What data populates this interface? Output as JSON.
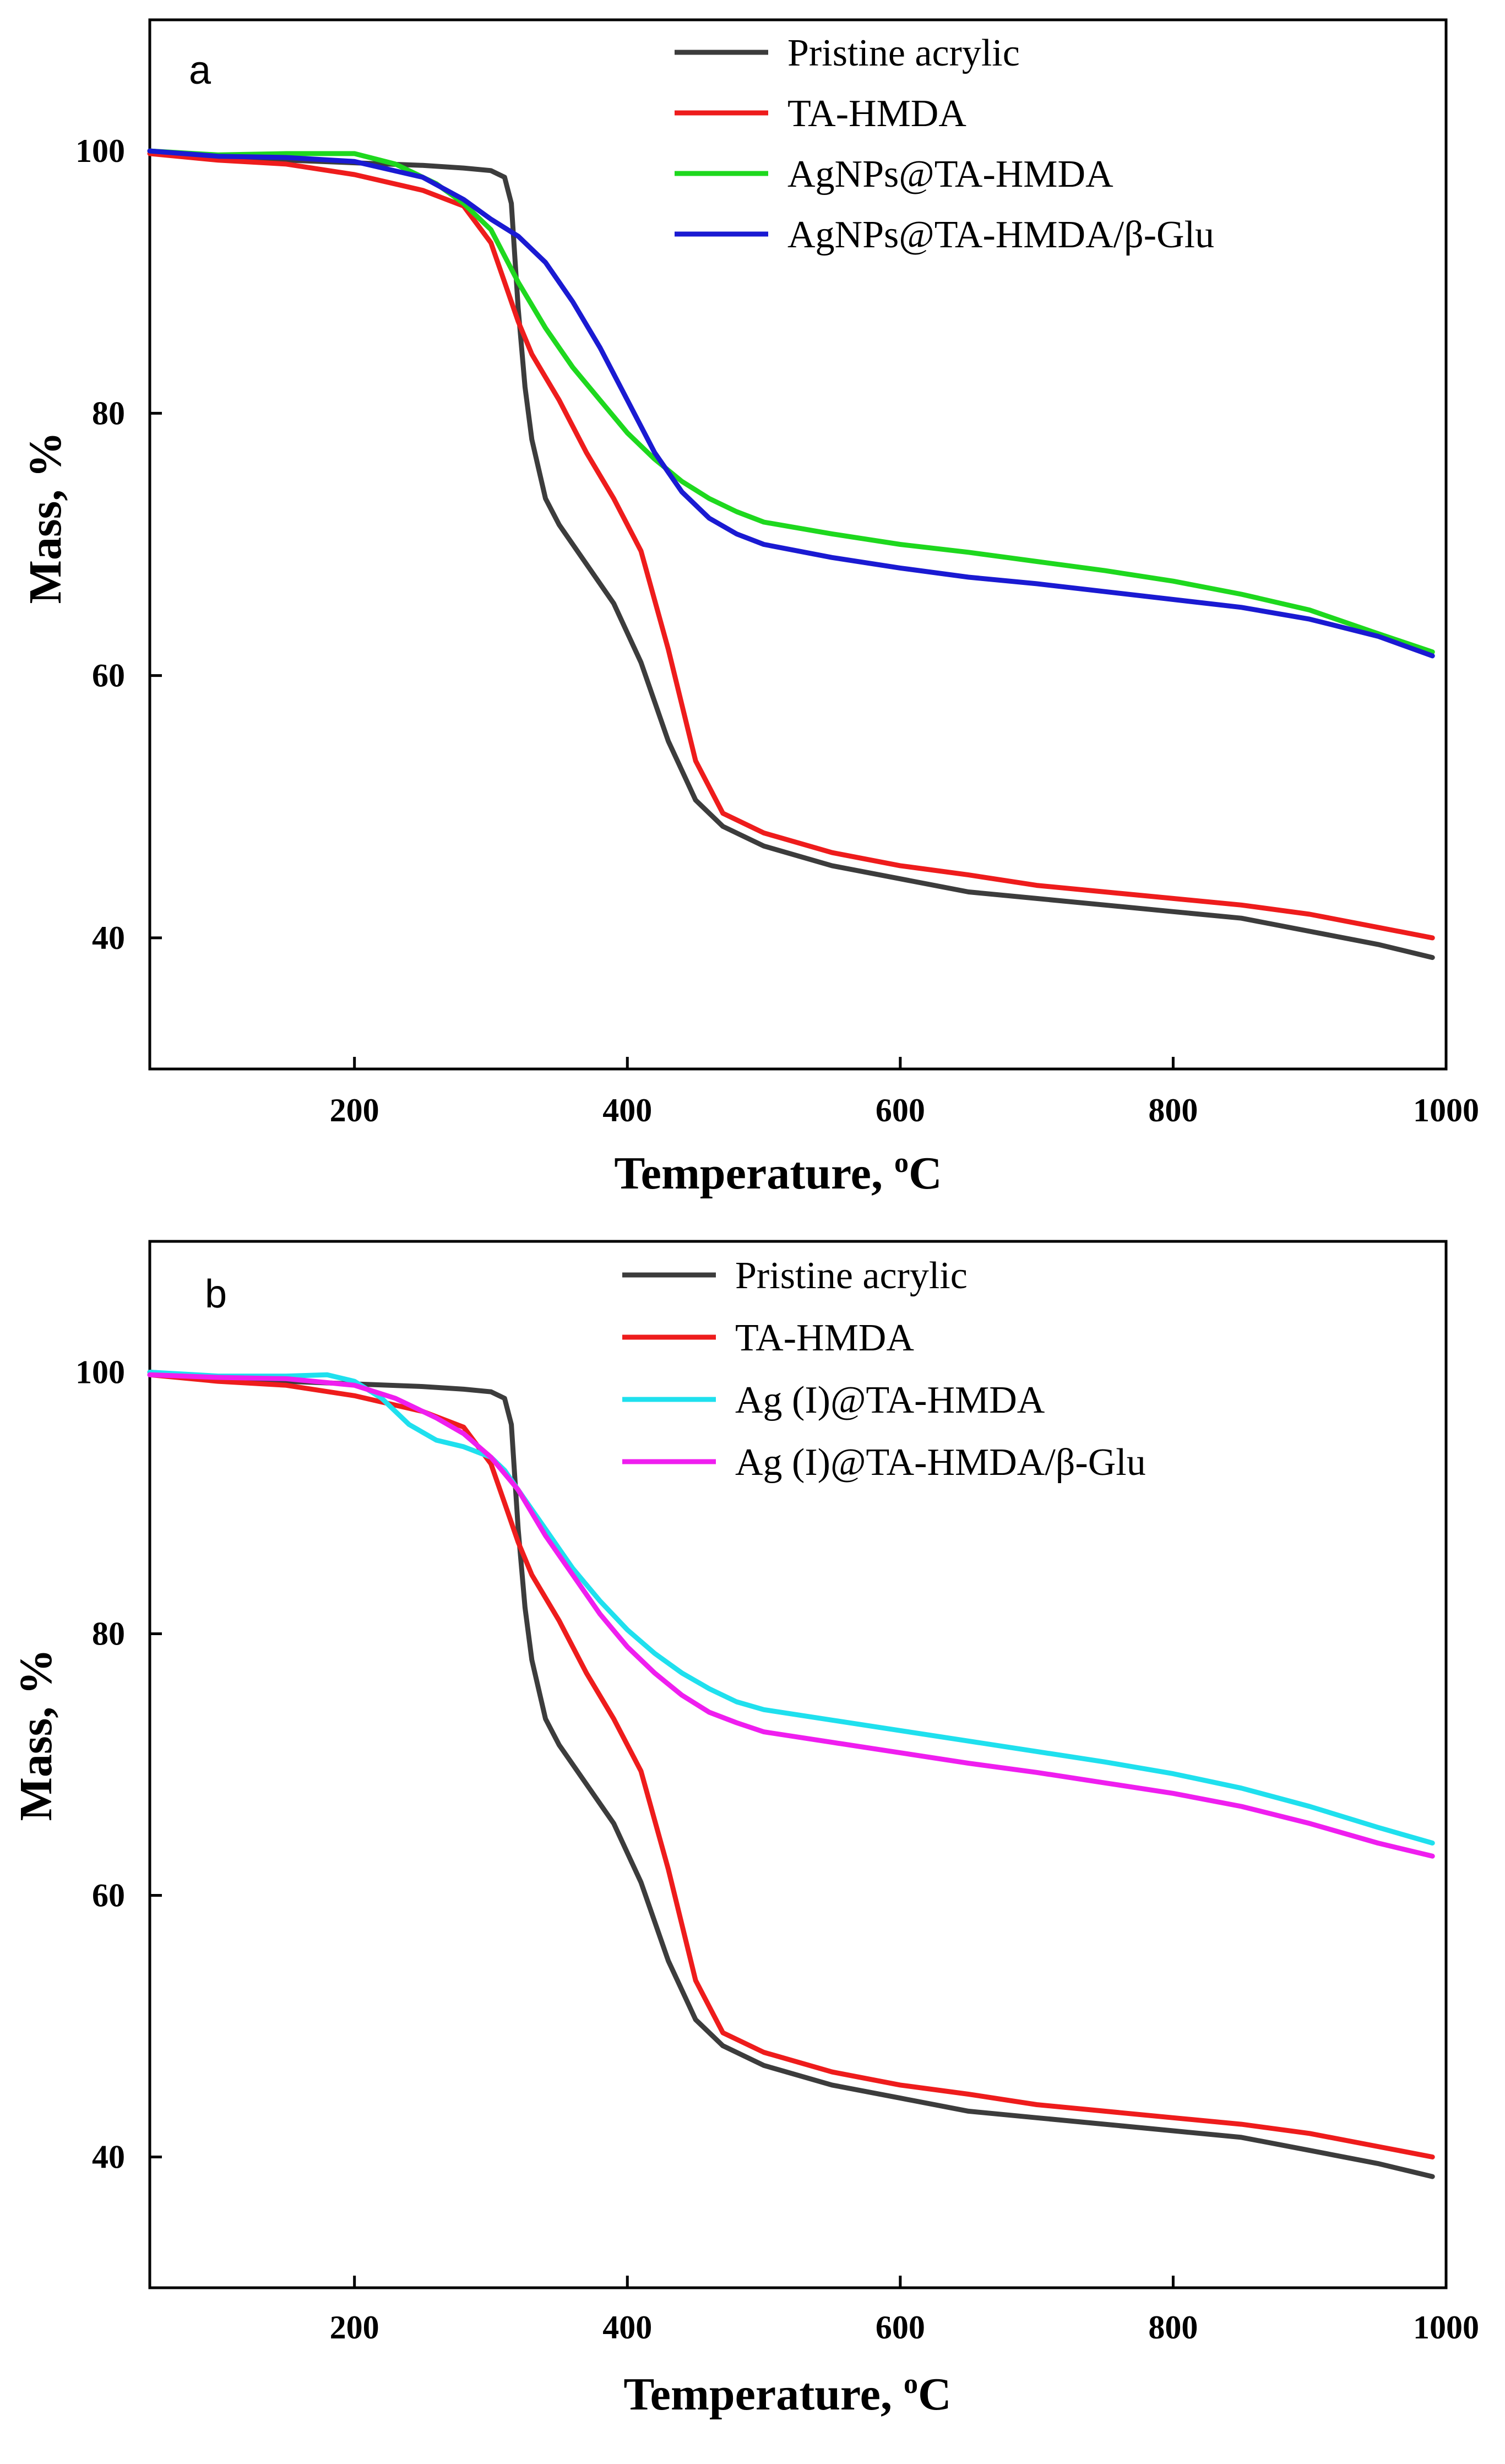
{
  "chart_data": [
    {
      "type": "line",
      "panel_label": "a",
      "xlabel": "Temperature, ",
      "xlabel_sup": "o",
      "xlabel_unit": "C",
      "ylabel": "Mass, %",
      "xlim": [
        50,
        1000
      ],
      "ylim": [
        30,
        110
      ],
      "xticks": [
        200,
        400,
        600,
        800,
        1000
      ],
      "yticks": [
        40,
        60,
        80,
        100
      ],
      "legend_position": "top-right",
      "series": [
        {
          "name": "Pristine acrylic",
          "color": "#3c3c3c",
          "x": [
            50,
            100,
            150,
            200,
            250,
            280,
            300,
            310,
            315,
            320,
            325,
            330,
            340,
            350,
            370,
            390,
            410,
            430,
            450,
            470,
            500,
            550,
            600,
            650,
            700,
            750,
            800,
            850,
            900,
            950,
            990
          ],
          "y": [
            100,
            99.6,
            99.3,
            99.1,
            98.9,
            98.7,
            98.5,
            98.0,
            96.0,
            88.0,
            82.0,
            78.0,
            73.5,
            71.5,
            68.5,
            65.5,
            61.0,
            55.0,
            50.5,
            48.5,
            47.0,
            45.5,
            44.5,
            43.5,
            43.0,
            42.5,
            42.0,
            41.5,
            40.5,
            39.5,
            38.5
          ]
        },
        {
          "name": "TA-HMDA",
          "color": "#ee1c1c",
          "x": [
            50,
            100,
            150,
            200,
            250,
            280,
            300,
            310,
            320,
            330,
            350,
            370,
            390,
            410,
            430,
            450,
            470,
            500,
            550,
            600,
            650,
            700,
            750,
            800,
            850,
            900,
            950,
            990
          ],
          "y": [
            99.8,
            99.3,
            99.0,
            98.2,
            97.0,
            95.8,
            93.0,
            90.0,
            87.0,
            84.5,
            81.0,
            77.0,
            73.5,
            69.5,
            62.0,
            53.5,
            49.5,
            48.0,
            46.5,
            45.5,
            44.8,
            44.0,
            43.5,
            43.0,
            42.5,
            41.8,
            40.8,
            40.0
          ]
        },
        {
          "name": "AgNPs@TA-HMDA",
          "color": "#1ed81e",
          "x": [
            50,
            100,
            150,
            200,
            230,
            260,
            280,
            300,
            320,
            340,
            360,
            380,
            400,
            420,
            440,
            460,
            480,
            500,
            550,
            600,
            650,
            700,
            750,
            800,
            850,
            900,
            950,
            990
          ],
          "y": [
            100,
            99.7,
            99.8,
            99.8,
            99.0,
            97.5,
            96.0,
            94.0,
            90.0,
            86.5,
            83.5,
            81.0,
            78.5,
            76.5,
            74.8,
            73.5,
            72.5,
            71.7,
            70.8,
            70.0,
            69.4,
            68.7,
            68.0,
            67.2,
            66.2,
            65.0,
            63.2,
            61.8
          ]
        },
        {
          "name": "AgNPs@TA-HMDA/β-Glu",
          "color": "#1a1ad2",
          "x": [
            50,
            100,
            150,
            200,
            250,
            280,
            300,
            320,
            340,
            360,
            380,
            400,
            420,
            440,
            460,
            480,
            500,
            550,
            600,
            650,
            700,
            750,
            800,
            850,
            900,
            950,
            990
          ],
          "y": [
            100,
            99.6,
            99.5,
            99.2,
            98.0,
            96.3,
            94.8,
            93.5,
            91.5,
            88.5,
            85.0,
            81.0,
            77.0,
            74.0,
            72.0,
            70.8,
            70.0,
            69.0,
            68.2,
            67.5,
            67.0,
            66.4,
            65.8,
            65.2,
            64.3,
            63.0,
            61.5
          ]
        }
      ]
    },
    {
      "type": "line",
      "panel_label": "b",
      "xlabel": "Temperature, ",
      "xlabel_sup": "o",
      "xlabel_unit": "C",
      "ylabel": "Mass, %",
      "xlim": [
        50,
        1000
      ],
      "ylim": [
        30,
        110
      ],
      "xticks": [
        200,
        400,
        600,
        800,
        1000
      ],
      "yticks": [
        40,
        60,
        80,
        100
      ],
      "legend_position": "top-right",
      "series": [
        {
          "name": "Pristine acrylic",
          "color": "#3c3c3c",
          "x": [
            50,
            100,
            150,
            200,
            250,
            280,
            300,
            310,
            315,
            320,
            325,
            330,
            340,
            350,
            370,
            390,
            410,
            430,
            450,
            470,
            500,
            550,
            600,
            650,
            700,
            750,
            800,
            850,
            900,
            950,
            990
          ],
          "y": [
            100,
            99.6,
            99.3,
            99.1,
            98.9,
            98.7,
            98.5,
            98.0,
            96.0,
            88.0,
            82.0,
            78.0,
            73.5,
            71.5,
            68.5,
            65.5,
            61.0,
            55.0,
            50.5,
            48.5,
            47.0,
            45.5,
            44.5,
            43.5,
            43.0,
            42.5,
            42.0,
            41.5,
            40.5,
            39.5,
            38.5
          ]
        },
        {
          "name": "TA-HMDA",
          "color": "#ee1c1c",
          "x": [
            50,
            100,
            150,
            200,
            250,
            280,
            300,
            310,
            320,
            330,
            350,
            370,
            390,
            410,
            430,
            450,
            470,
            500,
            550,
            600,
            650,
            700,
            750,
            800,
            850,
            900,
            950,
            990
          ],
          "y": [
            99.8,
            99.3,
            99.0,
            98.2,
            97.0,
            95.8,
            93.0,
            90.0,
            87.0,
            84.5,
            81.0,
            77.0,
            73.5,
            69.5,
            62.0,
            53.5,
            49.5,
            48.0,
            46.5,
            45.5,
            44.8,
            44.0,
            43.5,
            43.0,
            42.5,
            41.8,
            40.8,
            40.0
          ]
        },
        {
          "name": "Ag (I)@TA-HMDA",
          "color": "#1fe0ee",
          "x": [
            50,
            100,
            150,
            180,
            200,
            220,
            240,
            260,
            280,
            300,
            310,
            320,
            340,
            360,
            380,
            400,
            420,
            440,
            460,
            480,
            500,
            550,
            600,
            650,
            700,
            750,
            800,
            850,
            900,
            950,
            990
          ],
          "y": [
            100,
            99.7,
            99.7,
            99.8,
            99.3,
            98.0,
            96.0,
            94.8,
            94.3,
            93.5,
            92.5,
            91.0,
            88.0,
            85.0,
            82.5,
            80.3,
            78.5,
            77.0,
            75.8,
            74.8,
            74.2,
            73.4,
            72.6,
            71.8,
            71.0,
            70.2,
            69.3,
            68.2,
            66.8,
            65.2,
            64.0
          ]
        },
        {
          "name": "Ag (I)@TA-HMDA/β-Glu",
          "color": "#ef1eef",
          "x": [
            50,
            100,
            150,
            200,
            230,
            260,
            280,
            300,
            320,
            340,
            360,
            380,
            400,
            420,
            440,
            460,
            480,
            500,
            550,
            600,
            650,
            700,
            750,
            800,
            850,
            900,
            950,
            990
          ],
          "y": [
            99.8,
            99.6,
            99.5,
            99.0,
            98.0,
            96.5,
            95.3,
            93.5,
            91.0,
            87.5,
            84.5,
            81.5,
            79.0,
            77.0,
            75.3,
            74.0,
            73.2,
            72.5,
            71.7,
            70.9,
            70.1,
            69.4,
            68.6,
            67.8,
            66.8,
            65.5,
            64.0,
            63.0
          ]
        }
      ]
    }
  ]
}
